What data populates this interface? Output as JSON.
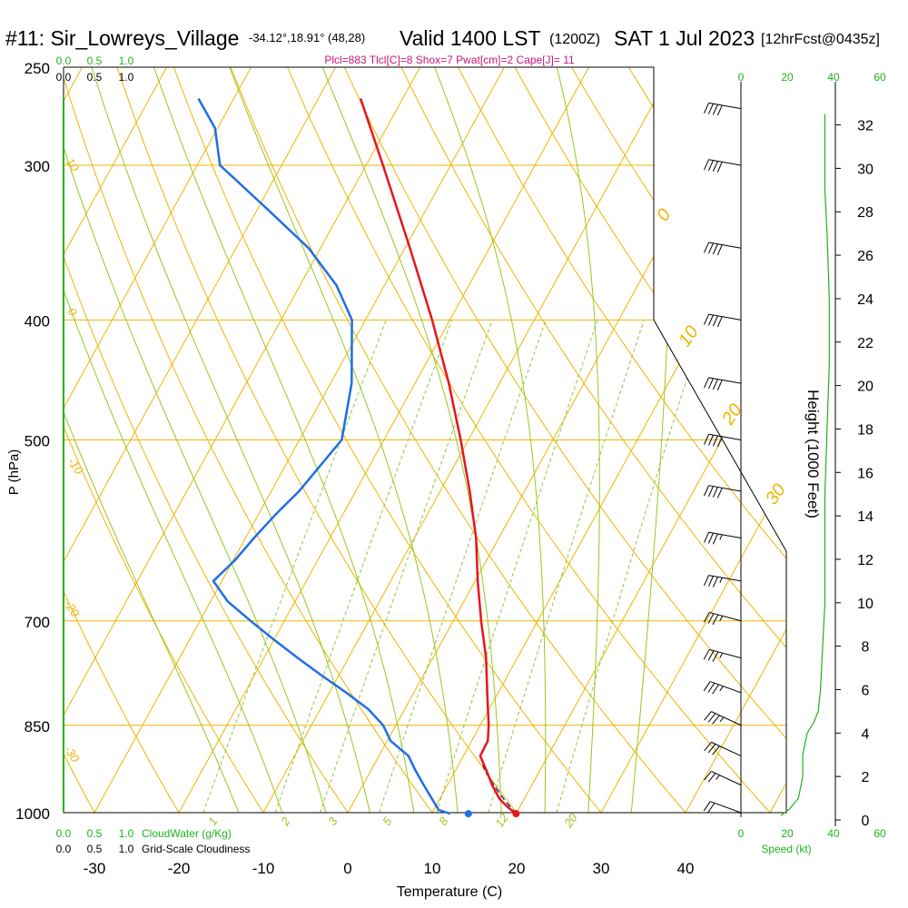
{
  "header": {
    "site": "#11: Sir_Lowreys_Village",
    "coords": "-34.12°,18.91° (48,28)",
    "valid": "Valid 1400 LST",
    "utc": "(1200Z)",
    "date": "SAT 1 Jul 2023",
    "forecast": "[12hrFcst@0435z]",
    "params": "Plcl=883 Tlcl[C]=8 Shox=7 Pwat[cm]=2 Cape[J]= 11"
  },
  "colors": {
    "temperature": "#e8141e",
    "dewpoint": "#1e6ee6",
    "parcel": "#1a2a8a",
    "isobar_isotherm": "#f0b400",
    "dry_adiabat": "#f0b400",
    "moist_adiabat": "#96c81e",
    "mixing_ratio": "#8cc83c",
    "cloud_scale": "#1eb41e",
    "lcl_marker": "#c8147a"
  },
  "chart_data": {
    "type": "line",
    "title": "",
    "xlabel": "Temperature (C)",
    "ylabel": "P (hPa)",
    "xlim": [
      -35,
      45
    ],
    "x_ticks": [
      -30,
      -20,
      -10,
      0,
      10,
      20,
      30,
      40
    ],
    "pressure_ticks": [
      250,
      300,
      400,
      500,
      700,
      850,
      1000
    ],
    "height_axis": {
      "label": "Height (1000 Feet)",
      "ticks": [
        0,
        2,
        4,
        6,
        8,
        10,
        12,
        14,
        16,
        18,
        20,
        22,
        24,
        26,
        28,
        30,
        32
      ]
    },
    "cloud_scale": {
      "top_ticks": [
        "0.0",
        "0.5",
        "1.0"
      ],
      "top_ticks2": [
        "0.0",
        "0.5",
        "1.0"
      ],
      "bottom_ticks": [
        "0.0",
        "0.5",
        "1.0"
      ],
      "bottom_ticks2": [
        "0.0",
        "0.5",
        "1.0"
      ],
      "bottom_label1": "CloudWater (g/Kg)",
      "bottom_label2": "Grid-Scale Cloudiness"
    },
    "speed_axis": {
      "label": "Speed (kt)",
      "ticks": [
        0,
        20,
        40,
        60
      ],
      "profile_height_kft": [
        0.2,
        0.5,
        1,
        2,
        3,
        4,
        4.5,
        5,
        6,
        8,
        10,
        12,
        15,
        18,
        21,
        24,
        27,
        29,
        31,
        32.5
      ],
      "profile_speed": [
        18,
        22,
        26,
        28,
        28,
        30,
        33,
        35,
        36,
        37,
        38,
        38,
        38,
        39,
        40,
        40,
        39,
        38,
        38,
        38
      ]
    },
    "isotherm_labels": [
      "0",
      "10",
      "20",
      "30"
    ],
    "dry_adiabat_labels": [
      "10",
      "0",
      "-10",
      "-20",
      "-30"
    ],
    "mixing_ratio_labels": [
      "1",
      "2",
      "3",
      "5",
      "8",
      "12",
      "20"
    ],
    "series": [
      {
        "name": "Temperature",
        "pressure": [
          1002,
          990,
          975,
          950,
          925,
          900,
          875,
          850,
          800,
          750,
          700,
          650,
          600,
          550,
          500,
          450,
          400,
          350,
          300,
          265
        ],
        "values": [
          20.0,
          18.6,
          17.1,
          15.3,
          13.7,
          12.0,
          11.9,
          11.0,
          8.7,
          6.3,
          3.3,
          0.3,
          -2.7,
          -6.5,
          -10.9,
          -16.0,
          -22.1,
          -29.4,
          -38.0,
          -45.0
        ]
      },
      {
        "name": "Dewpoint",
        "pressure": [
          1002,
          995,
          975,
          950,
          925,
          900,
          875,
          850,
          825,
          800,
          775,
          750,
          725,
          700,
          675,
          650,
          625,
          600,
          575,
          550,
          500,
          450,
          400,
          375,
          350,
          325,
          300,
          280,
          265
        ],
        "values": [
          12.2,
          10.6,
          9.1,
          7.2,
          5.3,
          3.5,
          0.4,
          -1.5,
          -4.3,
          -8.0,
          -12.0,
          -16.0,
          -20.0,
          -24.0,
          -28.0,
          -31.0,
          -29.8,
          -29.0,
          -28.0,
          -26.7,
          -25.0,
          -27.5,
          -31.6,
          -35.7,
          -41.4,
          -49.0,
          -57.3,
          -60.3,
          -64.2
        ]
      },
      {
        "name": "Parcel",
        "pressure": [
          1002,
          975,
          950,
          925,
          900
        ],
        "values": [
          20.0,
          17.6,
          15.5,
          13.5,
          12.0
        ]
      }
    ],
    "wind_barbs": [
      {
        "pressure": 1000,
        "height_kft": 0.5,
        "direction": 290,
        "speed": 20
      },
      {
        "pressure": 950,
        "height_kft": 1.8,
        "direction": 295,
        "speed": 25
      },
      {
        "pressure": 900,
        "height_kft": 3.3,
        "direction": 295,
        "speed": 30
      },
      {
        "pressure": 850,
        "height_kft": 4.8,
        "direction": 295,
        "speed": 35
      },
      {
        "pressure": 800,
        "height_kft": 6.4,
        "direction": 290,
        "speed": 35
      },
      {
        "pressure": 750,
        "height_kft": 8.1,
        "direction": 285,
        "speed": 35
      },
      {
        "pressure": 700,
        "height_kft": 9.9,
        "direction": 285,
        "speed": 35
      },
      {
        "pressure": 650,
        "height_kft": 11.7,
        "direction": 280,
        "speed": 35
      },
      {
        "pressure": 600,
        "height_kft": 13.8,
        "direction": 280,
        "speed": 35
      },
      {
        "pressure": 550,
        "height_kft": 15.9,
        "direction": 280,
        "speed": 40
      },
      {
        "pressure": 500,
        "height_kft": 18.3,
        "direction": 280,
        "speed": 40
      },
      {
        "pressure": 450,
        "height_kft": 20.9,
        "direction": 280,
        "speed": 40
      },
      {
        "pressure": 400,
        "height_kft": 23.6,
        "direction": 280,
        "speed": 40
      },
      {
        "pressure": 350,
        "height_kft": 26.7,
        "direction": 280,
        "speed": 40
      },
      {
        "pressure": 300,
        "height_kft": 30.1,
        "direction": 280,
        "speed": 40
      },
      {
        "pressure": 270,
        "height_kft": 32.3,
        "direction": 280,
        "speed": 40
      }
    ]
  }
}
